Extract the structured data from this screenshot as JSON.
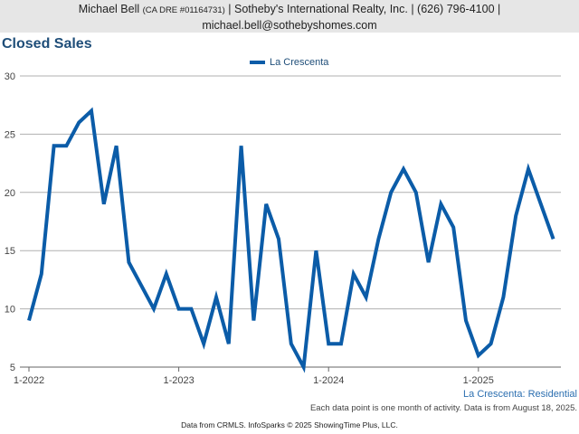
{
  "header": {
    "name": "Michael Bell",
    "dre": "(CA DRE #01164731)",
    "company": "| Sotheby's International Realty, Inc. | (626) 796-4100 |",
    "email": "michael.bell@sothebyshomes.com"
  },
  "footer": {
    "region": "La Crescenta: Residential",
    "note": "Each data point is one month of activity. Data is from August 18, 2025.",
    "source": "Data from CRMLS. InfoSparks © 2025 ShowingTime Plus, LLC."
  },
  "colors": {
    "series": "#0b5ca8",
    "title": "#1f4e79",
    "grid": "#b0b0b0"
  },
  "chart_data": {
    "type": "line",
    "title": "Closed Sales",
    "ylim": [
      5,
      30
    ],
    "yticks": [
      5,
      10,
      15,
      20,
      25,
      30
    ],
    "xticks": [
      "1-2022",
      "1-2023",
      "1-2024",
      "1-2025"
    ],
    "x": [
      "2022-01",
      "2022-02",
      "2022-03",
      "2022-04",
      "2022-05",
      "2022-06",
      "2022-07",
      "2022-08",
      "2022-09",
      "2022-10",
      "2022-11",
      "2022-12",
      "2023-01",
      "2023-02",
      "2023-03",
      "2023-04",
      "2023-05",
      "2023-06",
      "2023-07",
      "2023-08",
      "2023-09",
      "2023-10",
      "2023-11",
      "2023-12",
      "2024-01",
      "2024-02",
      "2024-03",
      "2024-04",
      "2024-05",
      "2024-06",
      "2024-07",
      "2024-08",
      "2024-09",
      "2024-10",
      "2024-11",
      "2024-12",
      "2025-01",
      "2025-02",
      "2025-03",
      "2025-04",
      "2025-05",
      "2025-06",
      "2025-07"
    ],
    "series": [
      {
        "name": "La Crescenta",
        "values": [
          9,
          13,
          24,
          24,
          26,
          27,
          19,
          24,
          14,
          12,
          10,
          13,
          10,
          10,
          7,
          11,
          7,
          24,
          9,
          19,
          16,
          7,
          5,
          15,
          7,
          7,
          13,
          11,
          16,
          20,
          22,
          20,
          14,
          19,
          17,
          9,
          6,
          7,
          11,
          18,
          22,
          19,
          16
        ]
      }
    ],
    "grid": true,
    "legend": "top-center"
  }
}
